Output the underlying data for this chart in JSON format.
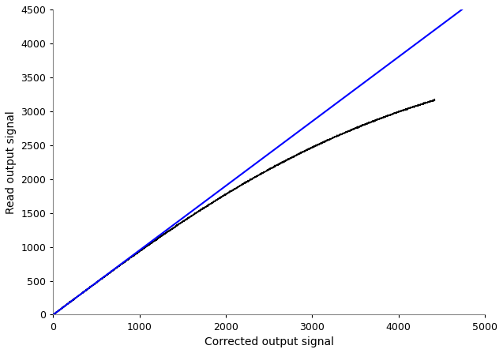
{
  "xlabel": "Corrected output signal",
  "ylabel": "Read output signal",
  "xlim": [
    0,
    5000
  ],
  "ylim": [
    0,
    4500
  ],
  "xticks": [
    0,
    1000,
    2000,
    3000,
    4000,
    5000
  ],
  "yticks": [
    0,
    500,
    1000,
    1500,
    2000,
    2500,
    3000,
    3500,
    4000,
    4500
  ],
  "line_color": "#0000ff",
  "scatter_color": "#000000",
  "line_x": [
    0,
    4736
  ],
  "line_y": [
    0,
    4500
  ],
  "background_color": "#ffffff",
  "label_fontsize": 10,
  "tick_fontsize": 9,
  "num_scatter_points": 5000,
  "slope": 0.9505,
  "sat_level": 4100,
  "sat_knee_x": 3700,
  "sat_sharpness": 800
}
